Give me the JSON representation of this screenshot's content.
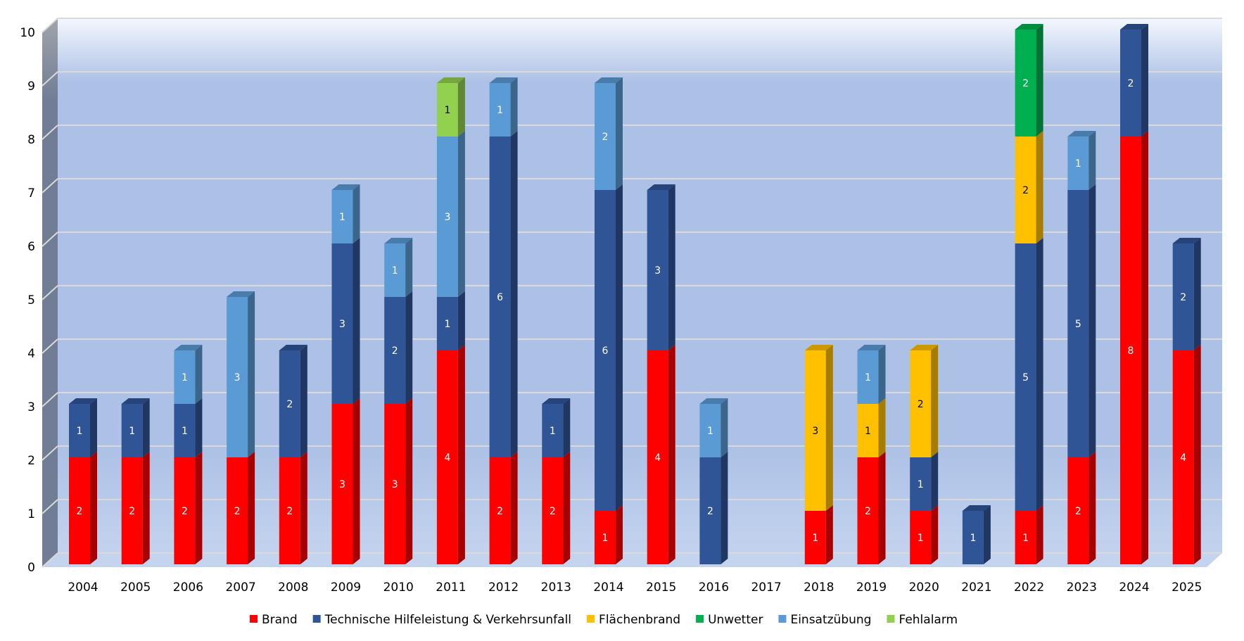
{
  "chart_data": {
    "type": "bar",
    "stacked": true,
    "three_d": true,
    "title": "",
    "xlabel": "",
    "ylabel": "",
    "ylim": [
      0,
      10
    ],
    "yticks": [
      0,
      1,
      2,
      3,
      4,
      5,
      6,
      7,
      8,
      9,
      10
    ],
    "grid": true,
    "legend_position": "bottom",
    "categories": [
      "2004",
      "2005",
      "2006",
      "2007",
      "2008",
      "2009",
      "2010",
      "2011",
      "2012",
      "2013",
      "2014",
      "2015",
      "2016",
      "2017",
      "2018",
      "2019",
      "2020",
      "2021",
      "2022",
      "2023",
      "2024",
      "2025"
    ],
    "series": [
      {
        "name": "Brand",
        "color": "#ff0000",
        "label_color": "#ffffff",
        "values": [
          2,
          2,
          2,
          2,
          2,
          3,
          3,
          4,
          2,
          2,
          1,
          4,
          0,
          0,
          1,
          2,
          1,
          0,
          1,
          2,
          8,
          4
        ]
      },
      {
        "name": "Technische Hilfeleistung & Verkehrsunfall",
        "color": "#2f5597",
        "label_color": "#ffffff",
        "values": [
          1,
          1,
          1,
          0,
          2,
          3,
          2,
          1,
          6,
          1,
          6,
          3,
          2,
          0,
          0,
          0,
          1,
          1,
          5,
          5,
          2,
          2
        ]
      },
      {
        "name": "Flächenbrand",
        "color": "#ffc000",
        "label_color": "#000000",
        "values": [
          0,
          0,
          0,
          0,
          0,
          0,
          0,
          0,
          0,
          0,
          0,
          0,
          0,
          0,
          3,
          1,
          2,
          0,
          2,
          0,
          0,
          0
        ]
      },
      {
        "name": "Unwetter",
        "color": "#00b050",
        "label_color": "#ffffff",
        "values": [
          0,
          0,
          0,
          0,
          0,
          0,
          0,
          0,
          0,
          0,
          0,
          0,
          0,
          0,
          0,
          0,
          0,
          0,
          2,
          0,
          0,
          0
        ]
      },
      {
        "name": "Einsatzübung",
        "color": "#5b9bd5",
        "label_color": "#ffffff",
        "values": [
          0,
          0,
          1,
          3,
          0,
          1,
          1,
          3,
          1,
          0,
          2,
          0,
          1,
          0,
          0,
          1,
          0,
          0,
          0,
          1,
          0,
          0
        ]
      },
      {
        "name": "Fehlalarm",
        "color": "#92d050",
        "label_color": "#000000",
        "values": [
          0,
          0,
          0,
          0,
          0,
          0,
          0,
          1,
          0,
          0,
          0,
          0,
          0,
          0,
          0,
          0,
          0,
          0,
          0,
          0,
          0,
          0
        ]
      }
    ]
  }
}
